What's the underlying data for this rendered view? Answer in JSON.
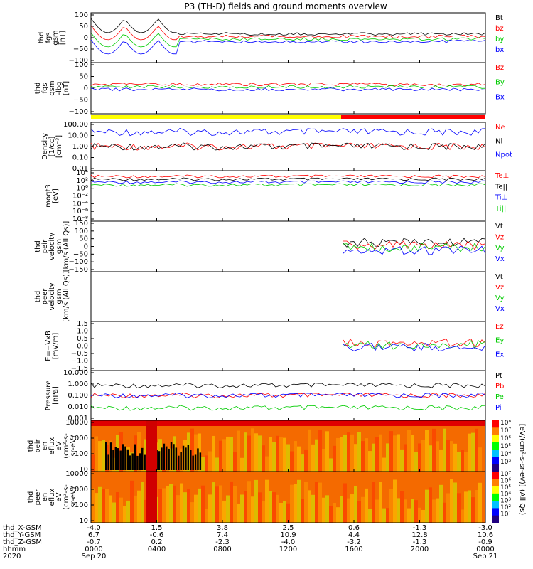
{
  "title": "P3 (TH-D) fields and ground moments overview",
  "colors": {
    "black": "#000000",
    "red": "#ff0000",
    "green": "#00cc00",
    "blue": "#0000ff",
    "yellow": "#ffff00"
  },
  "orbit_labels": [
    "thd_X-GSM",
    "thd_Y-GSM",
    "thd_Z-GSM",
    "hhmm",
    "2020"
  ],
  "orbit_rows": [
    [
      "-4.0",
      "1.5",
      "3.8",
      "2.5",
      "0.6",
      "-1.3",
      "-3.0"
    ],
    [
      "6.7",
      "-0.6",
      "7.4",
      "10.9",
      "4.4",
      "12.8",
      "10.6"
    ],
    [
      "-0.7",
      "0.2",
      "-2.3",
      "-4.0",
      "-3.2",
      "-1.3",
      "-0.9"
    ],
    [
      "0000",
      "0400",
      "0800",
      "1200",
      "1600",
      "2000",
      "0000"
    ],
    [
      "Sep 20",
      "",
      "",
      "",
      "",
      "",
      "Sep 21"
    ]
  ],
  "chart_data": [
    {
      "type": "line",
      "ylabel": [
        "thd",
        "fgs",
        "gsm",
        "[nT]"
      ],
      "ylim": [
        -100,
        100
      ],
      "yticks": [
        "100",
        "50",
        "0",
        "−50",
        "−100"
      ],
      "series": [
        {
          "name": "Bt",
          "color": "black"
        },
        {
          "name": "bz",
          "color": "red"
        },
        {
          "name": "by",
          "color": "green"
        },
        {
          "name": "bx",
          "color": "blue"
        }
      ]
    },
    {
      "type": "line",
      "ylabel": [
        "thd",
        "fgs",
        "gsm",
        "-lbg",
        "[nT]"
      ],
      "ylim": [
        -120,
        120
      ],
      "yticks": [
        "100",
        "50",
        "0",
        "−50",
        "−100"
      ],
      "series": [
        {
          "name": "Bz",
          "color": "red"
        },
        {
          "name": "By",
          "color": "green"
        },
        {
          "name": "Bx",
          "color": "blue"
        }
      ]
    },
    {
      "type": "line",
      "ylabel": [
        "Density",
        "[1/cc]",
        "[cm⁻³]"
      ],
      "yscale": "log",
      "ylim": [
        0.01,
        100
      ],
      "yticks": [
        "100.00",
        "10.00",
        "1.00",
        "0.10",
        "0.01"
      ],
      "series": [
        {
          "name": "Ne",
          "color": "red"
        },
        {
          "name": "Ni",
          "color": "black"
        },
        {
          "name": "Npot",
          "color": "blue"
        }
      ]
    },
    {
      "type": "line",
      "ylabel": [
        "moqt3",
        "[eV]"
      ],
      "yscale": "log",
      "yticks": [
        "10⁴",
        "10²",
        "10⁰",
        "10⁻²",
        "10⁻⁴",
        "10⁻⁶",
        "10⁻⁸"
      ],
      "series": [
        {
          "name": "Te⊥",
          "color": "red"
        },
        {
          "name": "Te||",
          "color": "black"
        },
        {
          "name": "Ti⊥",
          "color": "blue"
        },
        {
          "name": "Ti||",
          "color": "green"
        }
      ]
    },
    {
      "type": "line",
      "ylabel": [
        "thd",
        "peir",
        "velocity",
        "gsm",
        "[km/s (All Qs)]"
      ],
      "ylim": [
        -150,
        150
      ],
      "yticks": [
        "150",
        "100",
        "50",
        "0",
        "−50",
        "−100",
        "−150"
      ],
      "series": [
        {
          "name": "Vt",
          "color": "black"
        },
        {
          "name": "Vz",
          "color": "red"
        },
        {
          "name": "Vy",
          "color": "green"
        },
        {
          "name": "Vx",
          "color": "blue"
        }
      ]
    },
    {
      "type": "line",
      "ylabel": [
        "thd",
        "peer",
        "velocity",
        "gsm",
        "[km/s (All Qs)]"
      ],
      "yticks": [],
      "series": [
        {
          "name": "Vt",
          "color": "black"
        },
        {
          "name": "Vz",
          "color": "red"
        },
        {
          "name": "Vy",
          "color": "green"
        },
        {
          "name": "Vx",
          "color": "blue"
        }
      ]
    },
    {
      "type": "line",
      "ylabel": [
        "E=−VxB",
        "[mV/m]"
      ],
      "ylim": [
        -1.5,
        1.5
      ],
      "yticks": [
        "1.5",
        "1.0",
        "0.5",
        "0.0",
        "−0.5",
        "−1.0",
        "−1.5"
      ],
      "series": [
        {
          "name": "Ez",
          "color": "red"
        },
        {
          "name": "Ey",
          "color": "green"
        },
        {
          "name": "Ex",
          "color": "blue"
        }
      ]
    },
    {
      "type": "line",
      "ylabel": [
        "Pressure",
        "[nPa]"
      ],
      "yscale": "log",
      "ylim": [
        0.001,
        10
      ],
      "yticks": [
        "10.000",
        "1.000",
        "0.100",
        "0.010",
        "0.001"
      ],
      "series": [
        {
          "name": "Pt",
          "color": "black"
        },
        {
          "name": "Pb",
          "color": "red"
        },
        {
          "name": "Pe",
          "color": "green"
        },
        {
          "name": "Pi",
          "color": "blue"
        }
      ]
    },
    {
      "type": "heatmap",
      "ylabel": [
        "thd",
        "peir",
        "en",
        "eflux",
        "eV",
        "(cm²-s-",
        "sr-eV)"
      ],
      "yscale": "log",
      "yticks": [
        "10000",
        "1000",
        "100",
        "10"
      ],
      "colorbar": [
        "10⁸",
        "10⁷",
        "10⁶",
        "10⁵",
        "10⁴",
        "10³"
      ]
    },
    {
      "type": "heatmap",
      "ylabel": [
        "thd",
        "peer",
        "en",
        "eflux",
        "eV",
        "(cm²-s-",
        "sr-eV)"
      ],
      "yscale": "log",
      "yticks": [
        "10000",
        "1000",
        "100",
        "10"
      ],
      "colorbar": [
        "10⁷",
        "10⁶",
        "10⁵",
        "10⁴",
        "10³",
        "10²",
        "10¹"
      ]
    }
  ],
  "colorbar_label": "[eV/(cm²-s-sr-eV)] (All Qs)",
  "ticks_hhmm": [
    "0000",
    "0400",
    "0800",
    "1200",
    "1600",
    "2000",
    "0000"
  ]
}
